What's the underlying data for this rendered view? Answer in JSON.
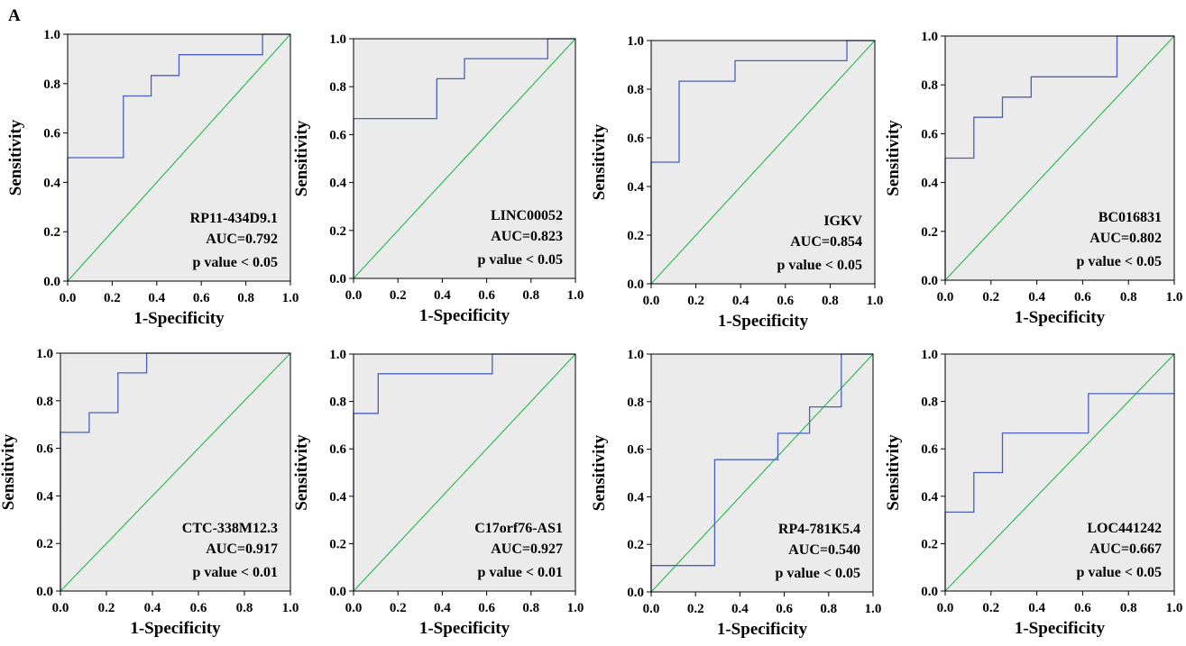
{
  "figure": {
    "panel_label": "A"
  },
  "style": {
    "roc_color": "#4a5fbf",
    "diag_color": "#33bb55",
    "plot_bg": "#ebebeb",
    "frame": "#000000"
  },
  "chart_data": [
    {
      "type": "line",
      "title": "",
      "xlabel": "1-Specificity",
      "ylabel": "Sensitivity",
      "xlim": [
        0,
        1
      ],
      "ylim": [
        0,
        1
      ],
      "xticks": [
        "0.0",
        "0.2",
        "0.4",
        "0.6",
        "0.8",
        "1.0"
      ],
      "yticks": [
        "0.0",
        "0.2",
        "0.4",
        "0.6",
        "0.8",
        "1.0"
      ],
      "annotation": {
        "name": "RP11-434D9.1",
        "auc": "AUC=0.792",
        "p": "p value < 0.05"
      },
      "series": [
        {
          "roc": [
            [
              0,
              0
            ],
            [
              0,
              0.5
            ],
            [
              0.25,
              0.5
            ],
            [
              0.25,
              0.75
            ],
            [
              0.375,
              0.75
            ],
            [
              0.375,
              0.833
            ],
            [
              0.5,
              0.833
            ],
            [
              0.5,
              0.917
            ],
            [
              0.875,
              0.917
            ],
            [
              0.875,
              1
            ],
            [
              1,
              1
            ]
          ]
        }
      ]
    },
    {
      "type": "line",
      "title": "",
      "xlabel": "1-Specificity",
      "ylabel": "Sensitivity",
      "xlim": [
        0,
        1
      ],
      "ylim": [
        0,
        1
      ],
      "xticks": [
        "0.0",
        "0.2",
        "0.4",
        "0.6",
        "0.8",
        "1.0"
      ],
      "yticks": [
        "0.0",
        "0.2",
        "0.4",
        "0.6",
        "0.8",
        "1.0"
      ],
      "annotation": {
        "name": "LINC00052",
        "auc": "AUC=0.823",
        "p": "p value < 0.05"
      },
      "series": [
        {
          "roc": [
            [
              0,
              0
            ],
            [
              0,
              0.667
            ],
            [
              0.375,
              0.667
            ],
            [
              0.375,
              0.833
            ],
            [
              0.5,
              0.833
            ],
            [
              0.5,
              0.917
            ],
            [
              0.875,
              0.917
            ],
            [
              0.875,
              1
            ],
            [
              1,
              1
            ]
          ]
        }
      ]
    },
    {
      "type": "line",
      "title": "",
      "xlabel": "1-Specificity",
      "ylabel": "Sensitivity",
      "xlim": [
        0,
        1
      ],
      "ylim": [
        0,
        1
      ],
      "xticks": [
        "0.0",
        "0.2",
        "0.4",
        "0.6",
        "0.8",
        "1.0"
      ],
      "yticks": [
        "0.0",
        "0.2",
        "0.4",
        "0.6",
        "0.8",
        "1.0"
      ],
      "annotation": {
        "name": "IGKV",
        "auc": "AUC=0.854",
        "p": "p value < 0.05"
      },
      "series": [
        {
          "roc": [
            [
              0,
              0
            ],
            [
              0,
              0.5
            ],
            [
              0.125,
              0.5
            ],
            [
              0.125,
              0.833
            ],
            [
              0.375,
              0.833
            ],
            [
              0.375,
              0.917
            ],
            [
              0.875,
              0.917
            ],
            [
              0.875,
              1
            ],
            [
              1,
              1
            ]
          ]
        }
      ]
    },
    {
      "type": "line",
      "title": "",
      "xlabel": "1-Specificity",
      "ylabel": "Sensitivity",
      "xlim": [
        0,
        1
      ],
      "ylim": [
        0,
        1
      ],
      "xticks": [
        "0.0",
        "0.2",
        "0.4",
        "0.6",
        "0.8",
        "1.0"
      ],
      "yticks": [
        "0.0",
        "0.2",
        "0.4",
        "0.6",
        "0.8",
        "1.0"
      ],
      "annotation": {
        "name": "BC016831",
        "auc": "AUC=0.802",
        "p": "p value < 0.05"
      },
      "series": [
        {
          "roc": [
            [
              0,
              0
            ],
            [
              0,
              0.5
            ],
            [
              0.125,
              0.5
            ],
            [
              0.125,
              0.667
            ],
            [
              0.25,
              0.667
            ],
            [
              0.25,
              0.75
            ],
            [
              0.375,
              0.75
            ],
            [
              0.375,
              0.833
            ],
            [
              0.75,
              0.833
            ],
            [
              0.75,
              1
            ],
            [
              1,
              1
            ]
          ]
        }
      ]
    },
    {
      "type": "line",
      "title": "",
      "xlabel": "1-Specificity",
      "ylabel": "Sensitivity",
      "xlim": [
        0,
        1
      ],
      "ylim": [
        0,
        1
      ],
      "xticks": [
        "0.0",
        "0.2",
        "0.4",
        "0.6",
        "0.8",
        "1.0"
      ],
      "yticks": [
        "0.0",
        "0.2",
        "0.4",
        "0.6",
        "0.8",
        "1.0"
      ],
      "annotation": {
        "name": "CTC-338M12.3",
        "auc": "AUC=0.917",
        "p": "p value < 0.01"
      },
      "series": [
        {
          "roc": [
            [
              0,
              0
            ],
            [
              0,
              0.667
            ],
            [
              0.125,
              0.667
            ],
            [
              0.125,
              0.75
            ],
            [
              0.25,
              0.75
            ],
            [
              0.25,
              0.917
            ],
            [
              0.375,
              0.917
            ],
            [
              0.375,
              1
            ],
            [
              1,
              1
            ]
          ]
        }
      ]
    },
    {
      "type": "line",
      "title": "",
      "xlabel": "1-Specificity",
      "ylabel": "Sensitivity",
      "xlim": [
        0,
        1
      ],
      "ylim": [
        0,
        1
      ],
      "xticks": [
        "0.0",
        "0.2",
        "0.4",
        "0.6",
        "0.8",
        "1.0"
      ],
      "yticks": [
        "0.0",
        "0.2",
        "0.4",
        "0.6",
        "0.8",
        "1.0"
      ],
      "annotation": {
        "name": "C17orf76-AS1",
        "auc": "AUC=0.927",
        "p": "p value < 0.01"
      },
      "series": [
        {
          "roc": [
            [
              0,
              0
            ],
            [
              0,
              0.75
            ],
            [
              0.111,
              0.75
            ],
            [
              0.111,
              0.917
            ],
            [
              0.625,
              0.917
            ],
            [
              0.625,
              1
            ],
            [
              1,
              1
            ]
          ]
        }
      ]
    },
    {
      "type": "line",
      "title": "",
      "xlabel": "1-Specificity",
      "ylabel": "Sensitivity",
      "xlim": [
        0,
        1
      ],
      "ylim": [
        0,
        1
      ],
      "xticks": [
        "0.0",
        "0.2",
        "0.4",
        "0.6",
        "0.8",
        "1.0"
      ],
      "yticks": [
        "0.0",
        "0.2",
        "0.4",
        "0.6",
        "0.8",
        "1.0"
      ],
      "annotation": {
        "name": "RP4-781K5.4",
        "auc": "AUC=0.540",
        "p": "p value < 0.05"
      },
      "series": [
        {
          "roc": [
            [
              0,
              0
            ],
            [
              0,
              0.111
            ],
            [
              0.286,
              0.111
            ],
            [
              0.286,
              0.556
            ],
            [
              0.571,
              0.556
            ],
            [
              0.571,
              0.667
            ],
            [
              0.714,
              0.667
            ],
            [
              0.714,
              0.778
            ],
            [
              0.857,
              0.778
            ],
            [
              0.857,
              1
            ],
            [
              1,
              1
            ]
          ]
        }
      ]
    },
    {
      "type": "line",
      "title": "",
      "xlabel": "1-Specificity",
      "ylabel": "Sensitivity",
      "xlim": [
        0,
        1
      ],
      "ylim": [
        0,
        1
      ],
      "xticks": [
        "0.0",
        "0.2",
        "0.4",
        "0.6",
        "0.8",
        "1.0"
      ],
      "yticks": [
        "0.0",
        "0.2",
        "0.4",
        "0.6",
        "0.8",
        "1.0"
      ],
      "annotation": {
        "name": "LOC441242",
        "auc": "AUC=0.667",
        "p": "p value < 0.05"
      },
      "series": [
        {
          "roc": [
            [
              0,
              0
            ],
            [
              0,
              0.333
            ],
            [
              0.125,
              0.333
            ],
            [
              0.125,
              0.5
            ],
            [
              0.25,
              0.5
            ],
            [
              0.25,
              0.667
            ],
            [
              0.625,
              0.667
            ],
            [
              0.625,
              0.833
            ],
            [
              1,
              0.833
            ]
          ]
        }
      ]
    }
  ]
}
